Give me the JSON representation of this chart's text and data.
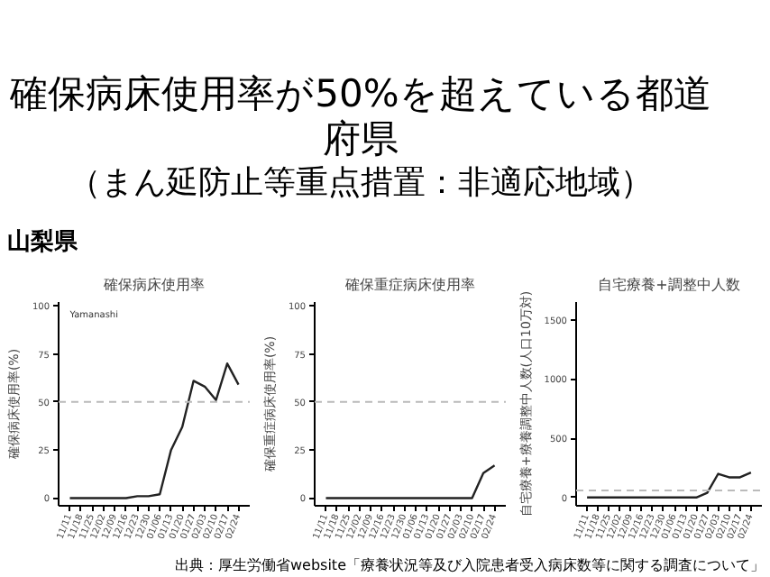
{
  "chart_data": [
    {
      "type": "line",
      "title": "確保病床使用率",
      "ylabel": "確保病床使用率(%)",
      "categories": [
        "11/11",
        "11/18",
        "11/25",
        "12/02",
        "12/09",
        "12/16",
        "12/23",
        "12/30",
        "01/06",
        "01/13",
        "01/20",
        "01/27",
        "02/03",
        "02/10",
        "02/17",
        "02/24"
      ],
      "series": [
        {
          "color": "#222222",
          "values": [
            0,
            0,
            0,
            0,
            0,
            0,
            1,
            1,
            2,
            25,
            37,
            61,
            58,
            51,
            70,
            59
          ]
        }
      ],
      "ylim": [
        -4,
        102
      ],
      "yticks": [
        0,
        25,
        50,
        75,
        100
      ],
      "grid": false,
      "ref_lines": [
        {
          "axis": "y",
          "value": 50,
          "color": "#bbbbbb",
          "line_style": "dashed"
        }
      ],
      "annotations": [
        "確保病床使用率が50%を超えている都道府県",
        "（まん延防止等重点措置：非適応地域）",
        "山梨県",
        "Yamanashi"
      ]
    },
    {
      "type": "line",
      "title": "確保重症病床使用率",
      "ylabel": "確保重症病床使用率(%)",
      "categories": [
        "11/11",
        "11/18",
        "11/25",
        "12/02",
        "12/09",
        "12/16",
        "12/23",
        "12/30",
        "01/06",
        "01/13",
        "01/20",
        "01/27",
        "02/03",
        "02/10",
        "02/17",
        "02/24"
      ],
      "series": [
        {
          "color": "#222222",
          "values": [
            0,
            0,
            0,
            0,
            0,
            0,
            0,
            0,
            0,
            0,
            0,
            0,
            0,
            0,
            13,
            17
          ]
        }
      ],
      "ylim": [
        -4,
        102
      ],
      "yticks": [
        0,
        25,
        50,
        75,
        100
      ],
      "grid": false,
      "ref_lines": [
        {
          "axis": "y",
          "value": 50,
          "color": "#bbbbbb",
          "line_style": "dashed"
        }
      ]
    },
    {
      "type": "line",
      "title": "自宅療養+調整中人数",
      "ylabel": "自宅療養+療養調整中人数(人口10万対)",
      "categories": [
        "11/11",
        "11/18",
        "11/25",
        "12/02",
        "12/09",
        "12/16",
        "12/23",
        "12/30",
        "01/06",
        "01/13",
        "01/20",
        "01/27",
        "02/03",
        "02/10",
        "02/17",
        "02/24"
      ],
      "series": [
        {
          "color": "#222222",
          "values": [
            0,
            0,
            0,
            0,
            0,
            0,
            0,
            0,
            0,
            0,
            0,
            40,
            200,
            170,
            170,
            210
          ]
        }
      ],
      "ylim": [
        -70,
        1650
      ],
      "yticks": [
        0,
        500,
        1000,
        1500
      ],
      "grid": false,
      "ref_lines": [
        {
          "axis": "y",
          "value": 60,
          "color": "#bbbbbb",
          "line_style": "dashed"
        }
      ],
      "annotations": [
        "出典：厚生労働省website「療養状況等及び入院患者受入病床数等に関する調査について」"
      ]
    }
  ]
}
